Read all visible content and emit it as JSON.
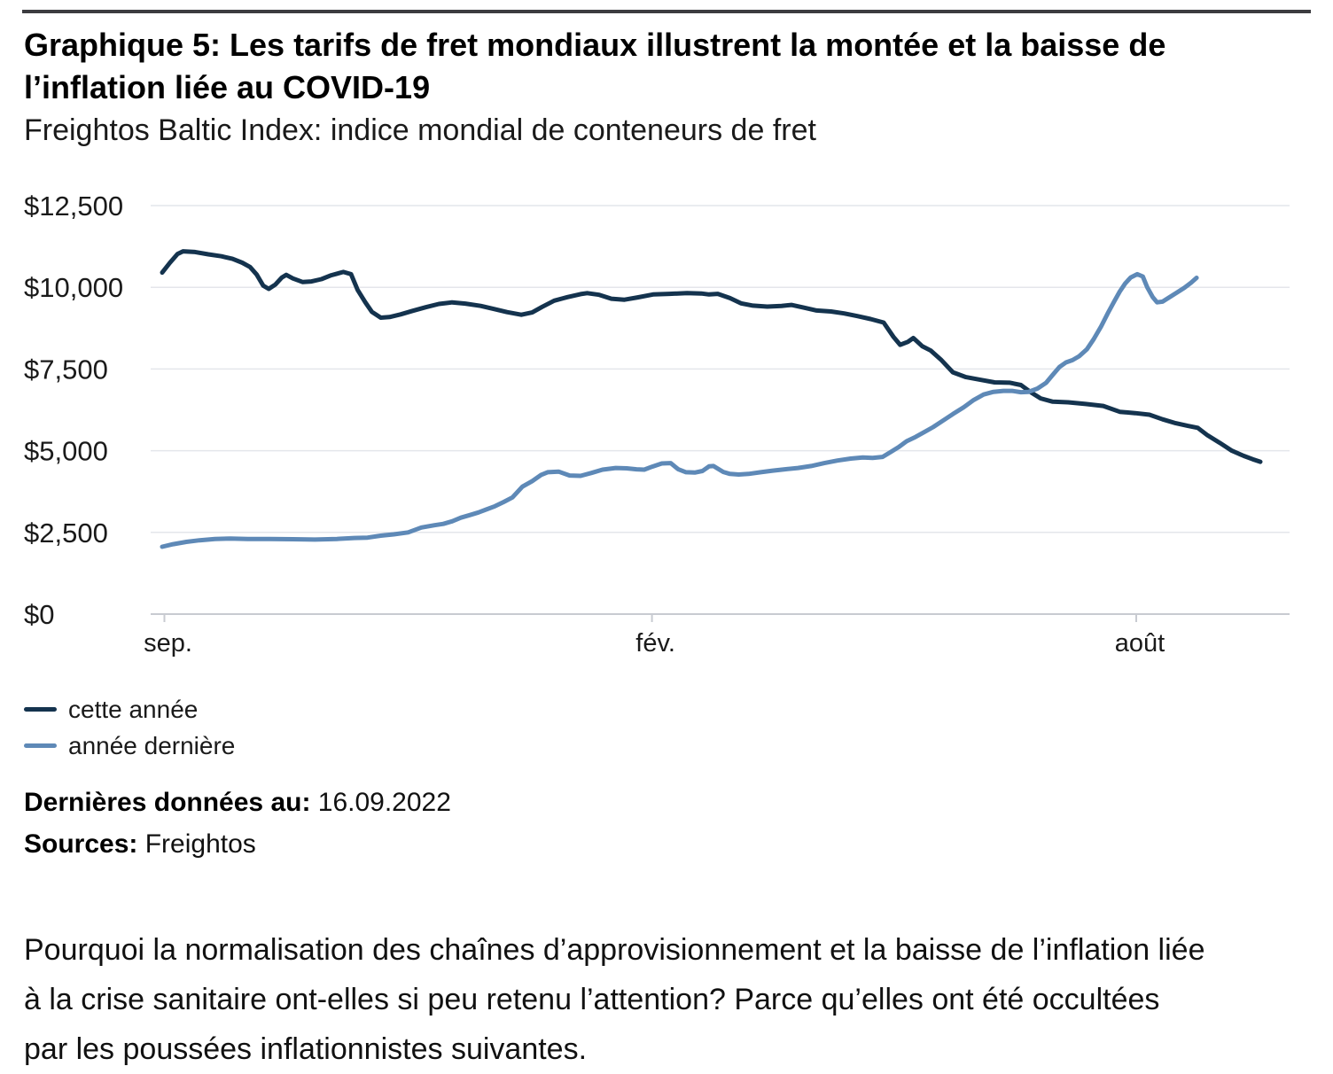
{
  "header": {
    "title_line1": "Graphique 5: Les tarifs de fret mondiaux illustrent la montée et la baisse de",
    "title_line2": "l’inflation liée au COVID-19",
    "subtitle": "Freightos Baltic Index: indice mondial de conteneurs de fret"
  },
  "chart_data": {
    "type": "line",
    "title": "Graphique 5: Les tarifs de fret mondiaux illustrent la montée et la baisse de l’inflation liée au COVID-19",
    "subtitle": "Freightos Baltic Index: indice mondial de conteneurs de fret",
    "xlabel": "",
    "ylabel": "",
    "ylim": [
      0,
      12500
    ],
    "grid": true,
    "legend_position": "below-left",
    "ytick_values": [
      0,
      2500,
      5000,
      7500,
      10000,
      12500
    ],
    "ytick_labels": [
      "$0",
      "$2,500",
      "$5,000",
      "$7,500",
      "$10,000",
      "$12,500"
    ],
    "xtick_positions": [
      0.002,
      0.446,
      0.887
    ],
    "xtick_labels": [
      "sep.",
      "fév.",
      "août"
    ],
    "grid_color": "#e4e6eb",
    "axis_color": "#c8cbd1",
    "series": [
      {
        "name": "cette année",
        "color": "#14334e",
        "points": [
          [
            0.0,
            10450
          ],
          [
            0.007,
            10750
          ],
          [
            0.014,
            11020
          ],
          [
            0.019,
            11100
          ],
          [
            0.03,
            11080
          ],
          [
            0.042,
            11010
          ],
          [
            0.054,
            10950
          ],
          [
            0.064,
            10870
          ],
          [
            0.073,
            10750
          ],
          [
            0.08,
            10620
          ],
          [
            0.086,
            10390
          ],
          [
            0.092,
            10050
          ],
          [
            0.097,
            9950
          ],
          [
            0.103,
            10080
          ],
          [
            0.109,
            10300
          ],
          [
            0.113,
            10380
          ],
          [
            0.119,
            10270
          ],
          [
            0.128,
            10160
          ],
          [
            0.136,
            10180
          ],
          [
            0.145,
            10250
          ],
          [
            0.154,
            10370
          ],
          [
            0.165,
            10470
          ],
          [
            0.172,
            10400
          ],
          [
            0.178,
            9920
          ],
          [
            0.185,
            9540
          ],
          [
            0.191,
            9250
          ],
          [
            0.199,
            9070
          ],
          [
            0.207,
            9090
          ],
          [
            0.217,
            9170
          ],
          [
            0.228,
            9280
          ],
          [
            0.24,
            9390
          ],
          [
            0.252,
            9490
          ],
          [
            0.264,
            9540
          ],
          [
            0.276,
            9500
          ],
          [
            0.29,
            9430
          ],
          [
            0.303,
            9330
          ],
          [
            0.314,
            9240
          ],
          [
            0.327,
            9160
          ],
          [
            0.337,
            9230
          ],
          [
            0.346,
            9400
          ],
          [
            0.357,
            9590
          ],
          [
            0.369,
            9700
          ],
          [
            0.381,
            9790
          ],
          [
            0.387,
            9820
          ],
          [
            0.398,
            9770
          ],
          [
            0.409,
            9650
          ],
          [
            0.421,
            9620
          ],
          [
            0.433,
            9690
          ],
          [
            0.447,
            9780
          ],
          [
            0.462,
            9800
          ],
          [
            0.478,
            9820
          ],
          [
            0.491,
            9810
          ],
          [
            0.498,
            9780
          ],
          [
            0.506,
            9800
          ],
          [
            0.517,
            9670
          ],
          [
            0.527,
            9510
          ],
          [
            0.538,
            9440
          ],
          [
            0.551,
            9410
          ],
          [
            0.564,
            9430
          ],
          [
            0.573,
            9460
          ],
          [
            0.584,
            9380
          ],
          [
            0.596,
            9290
          ],
          [
            0.609,
            9260
          ],
          [
            0.621,
            9200
          ],
          [
            0.633,
            9120
          ],
          [
            0.645,
            9030
          ],
          [
            0.657,
            8920
          ],
          [
            0.666,
            8480
          ],
          [
            0.672,
            8240
          ],
          [
            0.679,
            8330
          ],
          [
            0.684,
            8450
          ],
          [
            0.692,
            8200
          ],
          [
            0.7,
            8060
          ],
          [
            0.709,
            7790
          ],
          [
            0.72,
            7400
          ],
          [
            0.732,
            7250
          ],
          [
            0.745,
            7170
          ],
          [
            0.758,
            7090
          ],
          [
            0.772,
            7080
          ],
          [
            0.782,
            7010
          ],
          [
            0.791,
            6790
          ],
          [
            0.8,
            6600
          ],
          [
            0.811,
            6500
          ],
          [
            0.825,
            6480
          ],
          [
            0.841,
            6430
          ],
          [
            0.857,
            6370
          ],
          [
            0.872,
            6190
          ],
          [
            0.886,
            6150
          ],
          [
            0.899,
            6100
          ],
          [
            0.911,
            5960
          ],
          [
            0.923,
            5840
          ],
          [
            0.934,
            5760
          ],
          [
            0.943,
            5700
          ],
          [
            0.952,
            5470
          ],
          [
            0.963,
            5240
          ],
          [
            0.974,
            5000
          ],
          [
            0.985,
            4840
          ],
          [
            0.993,
            4740
          ],
          [
            1.0,
            4660
          ]
        ]
      },
      {
        "name": "année dernière",
        "color": "#5e89b7",
        "points": [
          [
            0.0,
            2060
          ],
          [
            0.01,
            2140
          ],
          [
            0.022,
            2210
          ],
          [
            0.034,
            2260
          ],
          [
            0.048,
            2300
          ],
          [
            0.062,
            2310
          ],
          [
            0.078,
            2300
          ],
          [
            0.098,
            2300
          ],
          [
            0.119,
            2290
          ],
          [
            0.139,
            2280
          ],
          [
            0.159,
            2300
          ],
          [
            0.175,
            2330
          ],
          [
            0.187,
            2340
          ],
          [
            0.199,
            2400
          ],
          [
            0.211,
            2440
          ],
          [
            0.224,
            2500
          ],
          [
            0.236,
            2650
          ],
          [
            0.248,
            2720
          ],
          [
            0.256,
            2760
          ],
          [
            0.264,
            2840
          ],
          [
            0.272,
            2950
          ],
          [
            0.28,
            3030
          ],
          [
            0.288,
            3110
          ],
          [
            0.295,
            3200
          ],
          [
            0.303,
            3300
          ],
          [
            0.311,
            3430
          ],
          [
            0.319,
            3570
          ],
          [
            0.328,
            3900
          ],
          [
            0.337,
            4070
          ],
          [
            0.345,
            4260
          ],
          [
            0.351,
            4340
          ],
          [
            0.361,
            4360
          ],
          [
            0.371,
            4240
          ],
          [
            0.381,
            4230
          ],
          [
            0.391,
            4320
          ],
          [
            0.401,
            4420
          ],
          [
            0.413,
            4470
          ],
          [
            0.423,
            4460
          ],
          [
            0.432,
            4430
          ],
          [
            0.439,
            4420
          ],
          [
            0.446,
            4510
          ],
          [
            0.455,
            4610
          ],
          [
            0.463,
            4620
          ],
          [
            0.47,
            4430
          ],
          [
            0.477,
            4340
          ],
          [
            0.485,
            4330
          ],
          [
            0.492,
            4380
          ],
          [
            0.498,
            4520
          ],
          [
            0.502,
            4530
          ],
          [
            0.506,
            4450
          ],
          [
            0.511,
            4350
          ],
          [
            0.517,
            4290
          ],
          [
            0.525,
            4270
          ],
          [
            0.534,
            4290
          ],
          [
            0.545,
            4340
          ],
          [
            0.556,
            4390
          ],
          [
            0.567,
            4430
          ],
          [
            0.579,
            4470
          ],
          [
            0.591,
            4530
          ],
          [
            0.603,
            4620
          ],
          [
            0.615,
            4700
          ],
          [
            0.627,
            4760
          ],
          [
            0.638,
            4790
          ],
          [
            0.647,
            4780
          ],
          [
            0.656,
            4810
          ],
          [
            0.663,
            4950
          ],
          [
            0.671,
            5120
          ],
          [
            0.678,
            5290
          ],
          [
            0.686,
            5420
          ],
          [
            0.694,
            5570
          ],
          [
            0.702,
            5720
          ],
          [
            0.711,
            5920
          ],
          [
            0.72,
            6120
          ],
          [
            0.73,
            6330
          ],
          [
            0.739,
            6550
          ],
          [
            0.748,
            6720
          ],
          [
            0.757,
            6800
          ],
          [
            0.766,
            6830
          ],
          [
            0.774,
            6830
          ],
          [
            0.782,
            6790
          ],
          [
            0.789,
            6800
          ],
          [
            0.797,
            6900
          ],
          [
            0.805,
            7080
          ],
          [
            0.811,
            7320
          ],
          [
            0.817,
            7560
          ],
          [
            0.823,
            7700
          ],
          [
            0.829,
            7770
          ],
          [
            0.835,
            7890
          ],
          [
            0.842,
            8100
          ],
          [
            0.848,
            8400
          ],
          [
            0.855,
            8800
          ],
          [
            0.861,
            9200
          ],
          [
            0.867,
            9570
          ],
          [
            0.872,
            9870
          ],
          [
            0.877,
            10120
          ],
          [
            0.882,
            10300
          ],
          [
            0.888,
            10400
          ],
          [
            0.893,
            10330
          ],
          [
            0.897,
            10000
          ],
          [
            0.902,
            9700
          ],
          [
            0.906,
            9540
          ],
          [
            0.911,
            9560
          ],
          [
            0.917,
            9690
          ],
          [
            0.925,
            9860
          ],
          [
            0.931,
            9990
          ],
          [
            0.937,
            10140
          ],
          [
            0.942,
            10290
          ]
        ]
      }
    ]
  },
  "meta": {
    "last_data_label": "Dernières données au:",
    "last_data_value": " 16.09.2022",
    "sources_label": "Sources:",
    "sources_value": " Freightos"
  },
  "footer": {
    "lines": [
      "Pourquoi la normalisation des chaînes d’approvisionnement et la baisse de l’inflation liée",
      "à la crise sanitaire ont-elles si peu retenu l’attention? Parce qu’elles ont été occultées",
      "par les poussées inflationnistes suivantes."
    ]
  }
}
